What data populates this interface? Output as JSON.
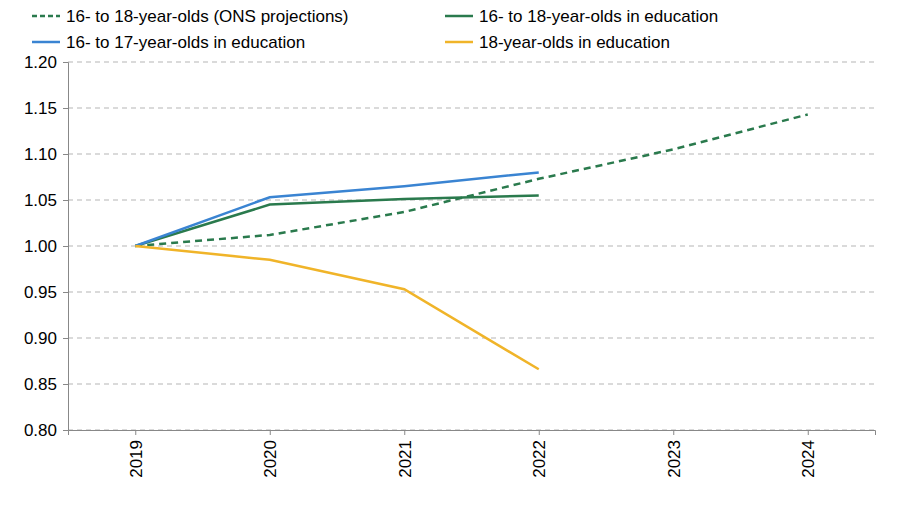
{
  "chart_data": {
    "type": "line",
    "categories": [
      "2019",
      "2020",
      "2021",
      "2022",
      "2023",
      "2024"
    ],
    "series": [
      {
        "name": "16- to 18-year-olds (ONS projections)",
        "color": "#2a7a4d",
        "line_style": "dashed",
        "values": [
          1.0,
          1.012,
          1.037,
          1.073,
          1.105,
          1.143
        ]
      },
      {
        "name": "16- to 18-year-olds in education",
        "color": "#2a7a4d",
        "line_style": "solid",
        "values": [
          1.0,
          1.045,
          1.051,
          1.055,
          null,
          null
        ]
      },
      {
        "name": "16- to 17-year-olds in education",
        "color": "#3a84d2",
        "line_style": "solid",
        "values": [
          1.0,
          1.053,
          1.065,
          1.08,
          null,
          null
        ]
      },
      {
        "name": "18-year-olds in education",
        "color": "#f0b429",
        "line_style": "solid",
        "values": [
          1.0,
          0.985,
          0.953,
          0.866,
          null,
          null
        ]
      }
    ],
    "ylim": [
      0.8,
      1.2
    ],
    "yticks": [
      {
        "value": 0.8,
        "label": "0.80"
      },
      0.85,
      {
        "value": 0.9,
        "label": "0.90"
      },
      0.95,
      {
        "value": 1.0,
        "label": "1.00"
      },
      1.05,
      {
        "value": 1.1,
        "label": "1.10"
      },
      1.15,
      {
        "value": 1.2,
        "label": "1.20"
      }
    ],
    "grid": true,
    "legend": "top"
  }
}
